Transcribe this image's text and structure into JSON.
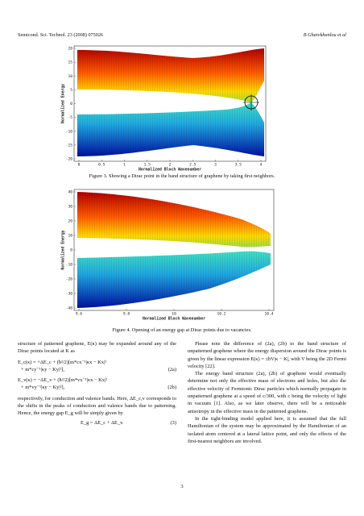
{
  "header": {
    "journal": "Semicond. Sci. Technol. 23 (2008) 075026",
    "authors": "B Gharekhanlou et al"
  },
  "figures": [
    {
      "ylabel": "Normalized Energy",
      "xlabel": "Normalized Bloch Wavenumber",
      "yticks": [
        "20",
        "15",
        "10",
        "5",
        "0",
        "-5",
        "-10",
        "-15",
        "-20"
      ],
      "xticks": [
        "0",
        "0.5",
        "1",
        "1.5",
        "2",
        "2.5",
        "3",
        "3.5",
        "4"
      ],
      "caption": "Figure 3. Showing a Dirac point in the band structure of graphene by taking first neighbors."
    },
    {
      "ylabel": "Normalized Energy",
      "xlabel": "Normalized Bloch Wavenumber",
      "yticks": [
        "40",
        "30",
        "20",
        "10",
        "0",
        "-10",
        "-20",
        "-30",
        "-40"
      ],
      "xticks": [
        "9.6",
        "9.8",
        "10",
        "10.2",
        "10.4"
      ],
      "caption": "Figure 4. Opening of an energy gap at Dirac points due to vacancies."
    }
  ],
  "left_column": {
    "intro": "structure of patterned graphene, E(κ) may be expanded around any of the Dirac points located at K as",
    "eq2a": [
      "E_c(κ) = +ΔE_c + (ħ²/2)[m*cx⁻¹|κx − Kx|²",
      "+ m*cy⁻¹|κy − Ky|²],",
      "(2a)"
    ],
    "eq2b": [
      "E_v(κ) = −ΔE_v + (ħ²/2)[m*vx⁻¹|κx − Kx|²",
      "+ m*vy⁻¹|κy − Ky|²],",
      "(2b)"
    ],
    "para": "respectively, for conduction and valence bands. Here, ΔE_c,v corresponds to the shifts in the peaks of conduction and valence bands due to patterning. Hence, the energy gap E_g will be simply given by",
    "eq3": [
      "E_g = ΔE_c + ΔE_v.",
      "(3)"
    ]
  },
  "right_column": [
    "Please note the difference of (2a), (2b) to the band structure of unpatterned graphene where the energy dispersion around the Dirac points is given by the linear expression E(κ) = ±ħV|κ − K|, with V being the 2D Fermi velocity [22].",
    "The energy band structure (2a), (2b) of graphene would eventually determine not only the effective mass of electrons and holes, but also the effective velocity of Fermionic Dirac particles which normally propagate in unpatterned graphene at a speed of c/300, with c being the velocity of light in vacuum [1]. Also, as we later observe, there will be a noticeable anisotropy in the effective mass in the patterned graphene.",
    "In the tight-binding model applied here, it is assumed that the full Hamiltonian of the system may be approximated by the Hamiltonian of an isolated atom centered at a lateral lattice point, and only the effects of the first-nearest neighbors are involved."
  ],
  "page_number": "3"
}
